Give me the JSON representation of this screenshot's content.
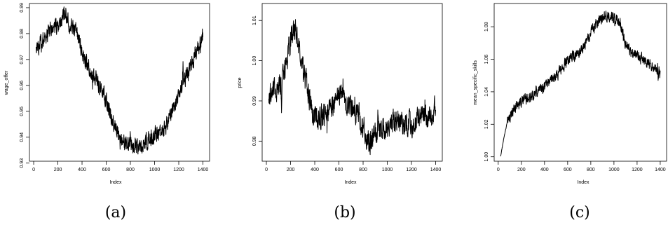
{
  "chart_data": [
    {
      "type": "line",
      "caption": "(a)",
      "xlabel": "Index",
      "ylabel": "wage_offer",
      "xlim": [
        0,
        1400
      ],
      "ylim": [
        0.93,
        0.99
      ],
      "x_ticks": [
        0,
        200,
        400,
        600,
        800,
        1000,
        1200,
        1400
      ],
      "x_tick_labels": [
        "0",
        "200",
        "400",
        "600",
        "800",
        "1000",
        "1200",
        "1400"
      ],
      "y_ticks": [
        0.93,
        0.94,
        0.95,
        0.96,
        0.97,
        0.98,
        0.99
      ],
      "y_tick_labels": [
        "0.93",
        "0.94",
        "0.95",
        "0.96",
        "0.97",
        "0.98",
        "0.99"
      ],
      "noise": 0.0035,
      "series": [
        {
          "x": [
            20,
            60,
            120,
            200,
            260,
            300,
            360,
            400,
            460,
            500,
            550,
            600,
            650,
            700,
            760,
            800,
            850,
            900,
            950,
            1000,
            1050,
            1100,
            1150,
            1200,
            1250,
            1300,
            1350,
            1400
          ],
          "y": [
            0.976,
            0.976,
            0.98,
            0.984,
            0.987,
            0.983,
            0.98,
            0.973,
            0.966,
            0.963,
            0.96,
            0.954,
            0.947,
            0.941,
            0.938,
            0.936,
            0.937,
            0.937,
            0.939,
            0.941,
            0.942,
            0.945,
            0.951,
            0.957,
            0.963,
            0.968,
            0.974,
            0.979
          ]
        }
      ]
    },
    {
      "type": "line",
      "caption": "(b)",
      "xlabel": "Index",
      "ylabel": "price",
      "xlim": [
        0,
        1400
      ],
      "ylim": [
        0.975,
        1.015
      ],
      "x_ticks": [
        0,
        200,
        400,
        600,
        800,
        1000,
        1200,
        1400
      ],
      "x_tick_labels": [
        "0",
        "200",
        "400",
        "600",
        "800",
        "1000",
        "1200",
        "1400"
      ],
      "y_ticks": [
        0.98,
        0.99,
        1.0,
        1.01
      ],
      "y_tick_labels": [
        "0.98",
        "0.99",
        "1.00",
        "1.01"
      ],
      "noise": 0.0032,
      "series": [
        {
          "x": [
            20,
            50,
            80,
            120,
            160,
            200,
            230,
            260,
            300,
            340,
            380,
            420,
            460,
            500,
            550,
            600,
            640,
            680,
            720,
            760,
            800,
            840,
            880,
            920,
            960,
            1000,
            1050,
            1100,
            1150,
            1200,
            1250,
            1300,
            1350,
            1400
          ],
          "y": [
            0.99,
            0.994,
            0.991,
            0.994,
            0.999,
            1.005,
            1.008,
            1.006,
            0.999,
            0.993,
            0.987,
            0.986,
            0.986,
            0.987,
            0.989,
            0.992,
            0.991,
            0.989,
            0.989,
            0.987,
            0.983,
            0.979,
            0.981,
            0.982,
            0.983,
            0.983,
            0.985,
            0.985,
            0.984,
            0.984,
            0.985,
            0.986,
            0.986,
            0.988
          ]
        }
      ]
    },
    {
      "type": "line",
      "caption": "(c)",
      "xlabel": "Index",
      "ylabel": "mean_specific_skills",
      "xlim": [
        0,
        1400
      ],
      "ylim": [
        0.995,
        1.095
      ],
      "x_ticks": [
        0,
        200,
        400,
        600,
        800,
        1000,
        1200,
        1400
      ],
      "x_tick_labels": [
        "0",
        "200",
        "400",
        "600",
        "800",
        "1000",
        "1200",
        "1400"
      ],
      "y_ticks": [
        1.0,
        1.02,
        1.04,
        1.06,
        1.08
      ],
      "y_tick_labels": [
        "1.00",
        "1.02",
        "1.04",
        "1.06",
        "1.08"
      ],
      "noise": 0.0035,
      "series": [
        {
          "x": [
            20,
            50,
            80,
            120,
            160,
            200,
            250,
            300,
            350,
            400,
            450,
            500,
            550,
            600,
            650,
            700,
            750,
            800,
            850,
            900,
            950,
            1000,
            1050,
            1100,
            1150,
            1200,
            1250,
            1300,
            1350,
            1400
          ],
          "y": [
            1.0,
            1.012,
            1.022,
            1.027,
            1.031,
            1.034,
            1.036,
            1.038,
            1.041,
            1.043,
            1.046,
            1.05,
            1.054,
            1.059,
            1.062,
            1.064,
            1.069,
            1.076,
            1.083,
            1.086,
            1.087,
            1.086,
            1.083,
            1.07,
            1.064,
            1.062,
            1.06,
            1.058,
            1.055,
            1.05
          ]
        }
      ]
    }
  ]
}
